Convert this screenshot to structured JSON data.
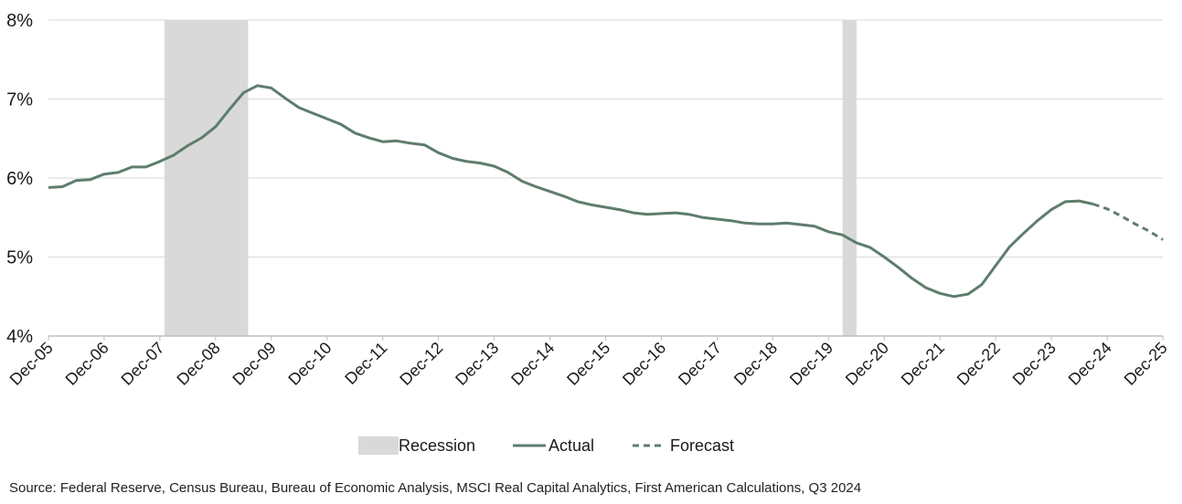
{
  "chart_data": {
    "type": "line",
    "title": "",
    "xlabel": "",
    "ylabel": "",
    "ylim": [
      4,
      8
    ],
    "xlim": [
      "2005-12",
      "2025-12"
    ],
    "y_ticks": [
      "4%",
      "5%",
      "6%",
      "7%",
      "8%"
    ],
    "y_tick_values": [
      4,
      5,
      6,
      7,
      8
    ],
    "x_ticks": [
      "Dec-05",
      "Dec-06",
      "Dec-07",
      "Dec-08",
      "Dec-09",
      "Dec-10",
      "Dec-11",
      "Dec-12",
      "Dec-13",
      "Dec-14",
      "Dec-15",
      "Dec-16",
      "Dec-17",
      "Dec-18",
      "Dec-19",
      "Dec-20",
      "Dec-21",
      "Dec-22",
      "Dec-23",
      "Dec-24",
      "Dec-25"
    ],
    "x_tick_values": [
      2005.917,
      2006.917,
      2007.917,
      2008.917,
      2009.917,
      2010.917,
      2011.917,
      2012.917,
      2013.917,
      2014.917,
      2015.917,
      2016.917,
      2017.917,
      2018.917,
      2019.917,
      2020.917,
      2021.917,
      2022.917,
      2023.917,
      2024.917,
      2025.917
    ],
    "grid": true,
    "legend_position": "bottom",
    "colors": {
      "line": "#5e7d6c",
      "recession": "#d9d9d9",
      "grid": "#d9d9d9"
    },
    "recessions": [
      {
        "start": 2008.0,
        "end": 2009.5
      },
      {
        "start": 2020.17,
        "end": 2020.42
      }
    ],
    "series": [
      {
        "name": "Actual",
        "style": "solid",
        "x": [
          2005.917,
          2006.167,
          2006.417,
          2006.667,
          2006.917,
          2007.167,
          2007.417,
          2007.667,
          2007.917,
          2008.167,
          2008.417,
          2008.667,
          2008.917,
          2009.167,
          2009.417,
          2009.667,
          2009.917,
          2010.167,
          2010.417,
          2010.667,
          2010.917,
          2011.167,
          2011.417,
          2011.667,
          2011.917,
          2012.167,
          2012.417,
          2012.667,
          2012.917,
          2013.167,
          2013.417,
          2013.667,
          2013.917,
          2014.167,
          2014.417,
          2014.667,
          2014.917,
          2015.167,
          2015.417,
          2015.667,
          2015.917,
          2016.167,
          2016.417,
          2016.667,
          2016.917,
          2017.167,
          2017.417,
          2017.667,
          2017.917,
          2018.167,
          2018.417,
          2018.667,
          2018.917,
          2019.167,
          2019.417,
          2019.667,
          2019.917,
          2020.167,
          2020.417,
          2020.667,
          2020.917,
          2021.167,
          2021.417,
          2021.667,
          2021.917,
          2022.167,
          2022.417,
          2022.667,
          2022.917,
          2023.167,
          2023.417,
          2023.667,
          2023.917,
          2024.167,
          2024.417,
          2024.667
        ],
        "values": [
          5.88,
          5.89,
          5.97,
          5.98,
          6.05,
          6.07,
          6.14,
          6.14,
          6.21,
          6.29,
          6.41,
          6.51,
          6.65,
          6.87,
          7.08,
          7.17,
          7.14,
          7.01,
          6.89,
          6.82,
          6.75,
          6.68,
          6.57,
          6.51,
          6.46,
          6.47,
          6.44,
          6.42,
          6.32,
          6.25,
          6.21,
          6.19,
          6.15,
          6.07,
          5.96,
          5.89,
          5.83,
          5.77,
          5.7,
          5.66,
          5.63,
          5.6,
          5.56,
          5.54,
          5.55,
          5.56,
          5.54,
          5.5,
          5.48,
          5.46,
          5.43,
          5.42,
          5.42,
          5.43,
          5.41,
          5.39,
          5.32,
          5.28,
          5.18,
          5.12,
          5.0,
          4.87,
          4.73,
          4.61,
          4.54,
          4.5,
          4.53,
          4.65,
          4.89,
          5.13,
          5.3,
          5.46,
          5.6,
          5.7,
          5.71,
          5.67
        ]
      },
      {
        "name": "Forecast",
        "style": "dashed",
        "x": [
          2024.667,
          2024.917,
          2025.167,
          2025.417,
          2025.667,
          2025.917
        ],
        "values": [
          5.67,
          5.61,
          5.52,
          5.42,
          5.33,
          5.22
        ]
      }
    ],
    "legend": [
      {
        "label": "Recession",
        "kind": "swatch"
      },
      {
        "label": "Actual",
        "kind": "solid-line"
      },
      {
        "label": "Forecast",
        "kind": "dashed-line"
      }
    ],
    "source": "Source: Federal Reserve, Census Bureau, Bureau of Economic Analysis, MSCI Real Capital Analytics, First American Calculations, Q3 2024"
  }
}
